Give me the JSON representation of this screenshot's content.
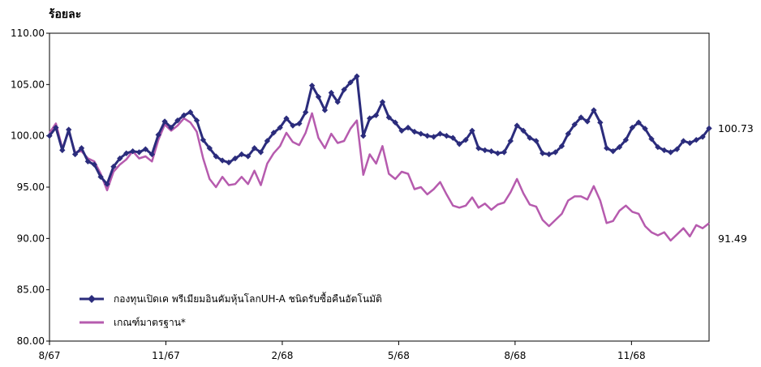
{
  "chart_data": {
    "type": "line",
    "ylabel": "ร้อยละ",
    "ylim": [
      80,
      110
    ],
    "yticks": [
      "110.00",
      "105.00",
      "100.00",
      "95.00",
      "90.00",
      "85.00",
      "80.00"
    ],
    "xticks": [
      "8/67",
      "11/67",
      "2/68",
      "5/68",
      "8/68",
      "11/68"
    ],
    "x_start": "8/67",
    "x_end": "1/69",
    "end_labels": {
      "fund": "100.73",
      "benchmark": "91.49"
    },
    "series": [
      {
        "name": "กองทุนเปิดเค พรีเมียมอินคัมหุ้นโลกUH-A ชนิดรับซื้อคืนอัตโนมัติ",
        "color": "#2b2c7c",
        "marker": "diamond",
        "values": [
          100.0,
          100.8,
          98.6,
          100.6,
          98.2,
          98.8,
          97.5,
          97.2,
          96.0,
          95.3,
          97.0,
          97.8,
          98.3,
          98.5,
          98.4,
          98.7,
          98.2,
          100.1,
          101.4,
          100.8,
          101.5,
          102.0,
          102.3,
          101.5,
          99.6,
          98.8,
          98.0,
          97.6,
          97.4,
          97.8,
          98.2,
          98.0,
          98.8,
          98.4,
          99.5,
          100.3,
          100.8,
          101.7,
          101.0,
          101.2,
          102.3,
          104.9,
          103.8,
          102.5,
          104.2,
          103.3,
          104.5,
          105.2,
          105.8,
          100.0,
          101.7,
          102.0,
          103.3,
          101.8,
          101.3,
          100.5,
          100.8,
          100.4,
          100.2,
          100.0,
          99.9,
          100.2,
          100.0,
          99.8,
          99.2,
          99.6,
          100.5,
          98.8,
          98.6,
          98.5,
          98.3,
          98.4,
          99.5,
          101.0,
          100.5,
          99.8,
          99.5,
          98.3,
          98.2,
          98.4,
          99.0,
          100.2,
          101.1,
          101.8,
          101.4,
          102.5,
          101.3,
          98.8,
          98.5,
          98.9,
          99.6,
          100.8,
          101.3,
          100.7,
          99.7,
          98.9,
          98.6,
          98.4,
          98.7,
          99.5,
          99.3,
          99.6,
          99.9,
          100.73
        ]
      },
      {
        "name": "เกณฑ์มาตรฐาน*",
        "color": "#b65bae",
        "marker": "none",
        "values": [
          100.3,
          101.2,
          98.8,
          100.4,
          98.4,
          98.5,
          97.8,
          97.5,
          96.3,
          94.7,
          96.5,
          97.2,
          97.7,
          98.5,
          97.8,
          98.0,
          97.5,
          99.6,
          101.1,
          100.5,
          101.0,
          101.7,
          101.3,
          100.4,
          97.8,
          95.8,
          95.0,
          96.0,
          95.2,
          95.3,
          96.0,
          95.3,
          96.6,
          95.2,
          97.3,
          98.3,
          99.0,
          100.3,
          99.4,
          99.1,
          100.3,
          102.2,
          99.8,
          98.8,
          100.2,
          99.3,
          99.5,
          100.7,
          101.5,
          96.2,
          98.2,
          97.3,
          99.0,
          96.3,
          95.8,
          96.5,
          96.3,
          94.8,
          95.0,
          94.3,
          94.8,
          95.5,
          94.3,
          93.2,
          93.0,
          93.2,
          94.0,
          93.0,
          93.4,
          92.8,
          93.3,
          93.5,
          94.5,
          95.8,
          94.4,
          93.3,
          93.1,
          91.8,
          91.2,
          91.8,
          92.4,
          93.7,
          94.1,
          94.1,
          93.8,
          95.1,
          93.7,
          91.5,
          91.7,
          92.7,
          93.2,
          92.6,
          92.4,
          91.2,
          90.6,
          90.3,
          90.6,
          89.8,
          90.4,
          91.0,
          90.2,
          91.3,
          91.0,
          91.49
        ]
      }
    ],
    "grid": false,
    "legend": "bottom-left"
  }
}
